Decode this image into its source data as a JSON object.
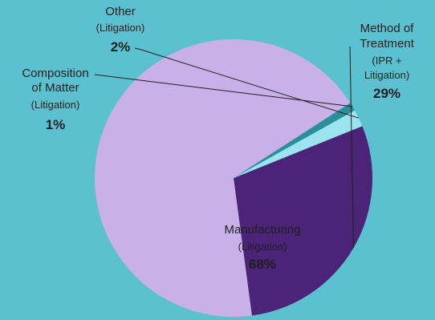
{
  "chart_data": {
    "type": "pie",
    "title": "",
    "background": "#5bc0d0",
    "slices": [
      {
        "name": "Method of Treatment",
        "sublabel_lines": [
          "(IPR +",
          "Litigation)"
        ],
        "value": 29,
        "value_label": "29%",
        "color": "#4b2477"
      },
      {
        "name": "Manufacturing",
        "sublabel_lines": [
          "(Litigation)"
        ],
        "value": 68,
        "value_label": "68%",
        "color": "#c9b0e8"
      },
      {
        "name": "Composition of Matter",
        "sublabel_lines": [
          "(Litigation)"
        ],
        "value": 1,
        "value_label": "1%",
        "color": "#2a8f98"
      },
      {
        "name": "Other",
        "sublabel_lines": [
          "(Litigation)"
        ],
        "value": 2,
        "value_label": "2%",
        "color": "#9be3ee"
      }
    ],
    "labels": {
      "method": {
        "name_lines": [
          "Method of",
          "Treatment"
        ],
        "sub_lines": [
          "(IPR +",
          "Litigation)"
        ],
        "pct": "29%"
      },
      "manufacturing": {
        "name_lines": [
          "Manufacturing"
        ],
        "sub_lines": [
          "(Litigation)"
        ],
        "pct": "68%"
      },
      "composition": {
        "name_lines": [
          "Composition",
          "of Matter"
        ],
        "sub_lines": [
          "(Litigation)"
        ],
        "pct": "1%"
      },
      "other": {
        "name_lines": [
          "Other"
        ],
        "sub_lines": [
          "(Litigation)"
        ],
        "pct": "2%"
      }
    }
  }
}
